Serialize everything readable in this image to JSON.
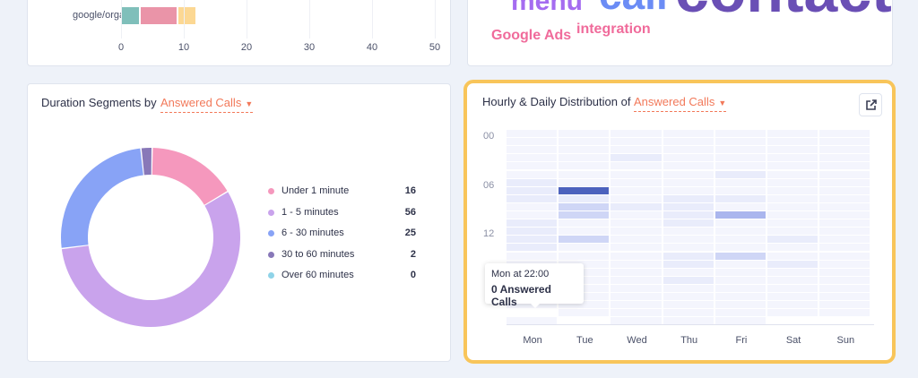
{
  "source_chart": {
    "row_label": "google/organic",
    "ticks": [
      "0",
      "10",
      "20",
      "30",
      "40",
      "50"
    ],
    "segments": [
      {
        "from": 0,
        "to": 3,
        "color": "#7fbfba"
      },
      {
        "from": 3,
        "to": 9,
        "color": "#ea94a8"
      },
      {
        "from": 9,
        "to": 12,
        "color": "#fcd893"
      }
    ],
    "xlim": [
      0,
      50
    ]
  },
  "word_cloud": [
    {
      "text": "menu",
      "color": "#a56cf0"
    },
    {
      "text": "call",
      "color": "#6b8cf5"
    },
    {
      "text": "contact",
      "color": "#6a4fb5"
    },
    {
      "text": "Google Ads",
      "color": "#f06b9b"
    },
    {
      "text": "integration",
      "color": "#f06b9b"
    }
  ],
  "duration": {
    "title": "Duration Segments by",
    "metric": "Answered Calls",
    "chart_data": {
      "type": "pie",
      "categories": [
        "Under 1 minute",
        "1 - 5 minutes",
        "6 - 30 minutes",
        "30 to 60 minutes",
        "Over 60 minutes"
      ],
      "values": [
        16,
        56,
        25,
        2,
        0
      ],
      "colors": [
        "#f598bd",
        "#c9a3ec",
        "#88a3f6",
        "#8878b8",
        "#8fd3e8"
      ]
    },
    "legend": [
      {
        "label": "Under 1 minute",
        "value": "16"
      },
      {
        "label": "1 - 5 minutes",
        "value": "56"
      },
      {
        "label": "6 - 30 minutes",
        "value": "25"
      },
      {
        "label": "30 to 60 minutes",
        "value": "2"
      },
      {
        "label": "Over 60 minutes",
        "value": "0"
      }
    ]
  },
  "hourly": {
    "title": "Hourly & Daily Distribution of",
    "metric": "Answered Calls",
    "hour_labels": [
      "00",
      "06",
      "12"
    ],
    "days": [
      "Mon",
      "Tue",
      "Wed",
      "Thu",
      "Fri",
      "Sat",
      "Sun"
    ],
    "chart_data": {
      "type": "heatmap",
      "x": [
        "Mon",
        "Tue",
        "Wed",
        "Thu",
        "Fri",
        "Sat",
        "Sun"
      ],
      "y_hours": 24,
      "intensity_cells": [
        [
          "Wed",
          3,
          1
        ],
        [
          "Fri",
          5,
          1
        ],
        [
          "Mon",
          6,
          1
        ],
        [
          "Mon",
          7,
          1
        ],
        [
          "Tue",
          7,
          4
        ],
        [
          "Mon",
          8,
          1
        ],
        [
          "Tue",
          8,
          1
        ],
        [
          "Thu",
          8,
          1
        ],
        [
          "Fri",
          8,
          1
        ],
        [
          "Tue",
          9,
          2
        ],
        [
          "Wed",
          9,
          1
        ],
        [
          "Thu",
          9,
          1
        ],
        [
          "Tue",
          10,
          2
        ],
        [
          "Thu",
          10,
          1
        ],
        [
          "Fri",
          10,
          3
        ],
        [
          "Mon",
          11,
          1
        ],
        [
          "Thu",
          11,
          1
        ],
        [
          "Mon",
          12,
          1
        ],
        [
          "Mon",
          13,
          1
        ],
        [
          "Tue",
          13,
          2
        ],
        [
          "Sat",
          13,
          1
        ],
        [
          "Mon",
          14,
          1
        ],
        [
          "Thu",
          15,
          1
        ],
        [
          "Fri",
          15,
          2
        ],
        [
          "Thu",
          16,
          1
        ],
        [
          "Sat",
          16,
          1
        ],
        [
          "Thu",
          18,
          1
        ]
      ],
      "missing_cells": [
        [
          "Mon",
          22
        ],
        [
          "Tue",
          23
        ],
        [
          "Sat",
          23
        ],
        [
          "Sun",
          23
        ]
      ]
    },
    "tooltip": {
      "line1": "Mon at 22:00",
      "line2": "0 Answered Calls"
    }
  }
}
